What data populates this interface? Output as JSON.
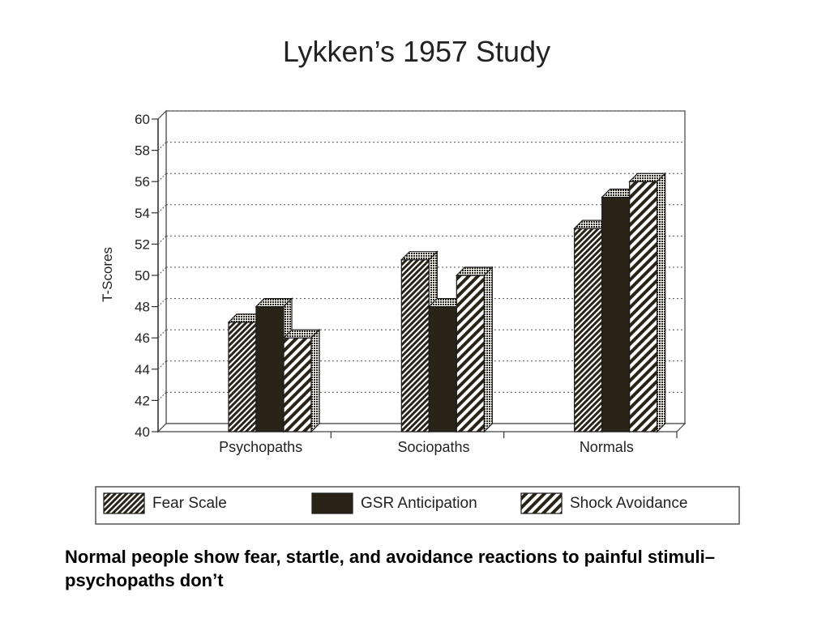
{
  "caption": "Normal people show fear, startle, and avoidance reactions to painful stimuli– psychopaths don’t",
  "chart_data": {
    "type": "bar",
    "title": "Lykken’s 1957 Study",
    "xlabel": "",
    "ylabel": "T-Scores",
    "ylim": [
      40,
      60
    ],
    "yticks": [
      40,
      42,
      44,
      46,
      48,
      50,
      52,
      54,
      56,
      58,
      60
    ],
    "grid": true,
    "categories": [
      "Psychopaths",
      "Sociopaths",
      "Normals"
    ],
    "series": [
      {
        "name": "Fear Scale",
        "values": [
          47,
          51,
          53
        ],
        "pattern": "hatch-dense"
      },
      {
        "name": "GSR Anticipation",
        "values": [
          48,
          48,
          55
        ],
        "pattern": "solid"
      },
      {
        "name": "Shock Avoidance",
        "values": [
          46,
          50,
          56
        ],
        "pattern": "hatch-wide"
      }
    ],
    "legend_position": "bottom"
  },
  "colors": {
    "bar_dark": "#2a2418",
    "axis": "#333333",
    "grid": "#555555"
  }
}
